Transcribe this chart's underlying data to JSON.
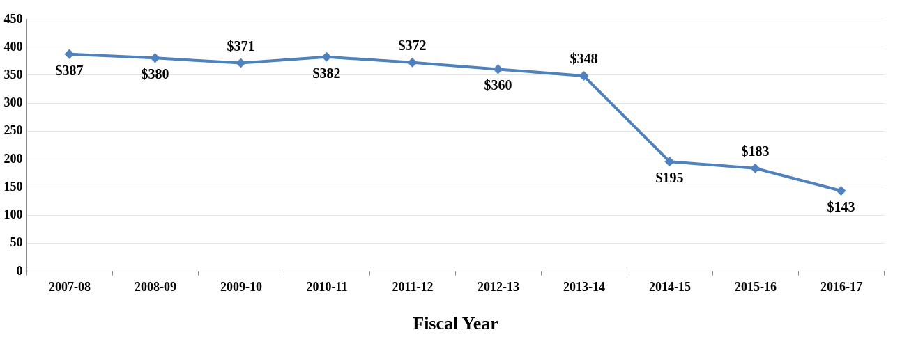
{
  "chart_data": {
    "type": "line",
    "xlabel": "Fiscal Year",
    "categories": [
      "2007-08",
      "2008-09",
      "2009-10",
      "2010-11",
      "2011-12",
      "2012-13",
      "2013-14",
      "2014-15",
      "2015-16",
      "2016-17"
    ],
    "series": [
      {
        "color": "#4f81bd",
        "values": [
          387,
          380,
          371,
          382,
          372,
          360,
          348,
          195,
          183,
          143
        ],
        "value_labels": [
          "$387",
          "$380",
          "$371",
          "$382",
          "$372",
          "$360",
          "$348",
          "$195",
          "$183",
          "$143"
        ]
      }
    ],
    "ylim": [
      0,
      450
    ],
    "yticks": [
      0,
      50,
      100,
      150,
      200,
      250,
      300,
      350,
      400,
      450
    ],
    "grid": "y",
    "marker": "diamond",
    "line_style": "solid"
  }
}
